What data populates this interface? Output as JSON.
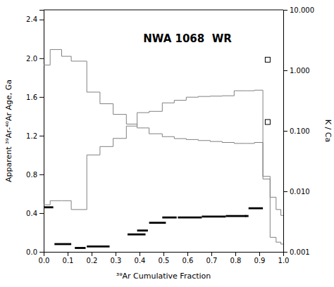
{
  "chart_data": {
    "type": "step",
    "title": "NWA 1068  WR",
    "x_label": "³⁹Ar Cumulative Fraction",
    "y_label": "Apparent ³⁹Ar-⁴⁰Ar Age, Ga",
    "y2_label": "K / Ca",
    "xlim": [
      0.0,
      1.0
    ],
    "ylim": [
      0.0,
      2.5
    ],
    "y2lim": [
      0.001,
      10.0
    ],
    "xticks": [
      {
        "value": 0.0,
        "label": "0.0"
      },
      0.1,
      0.2,
      0.3,
      0.4,
      0.5,
      0.6,
      0.7,
      0.8,
      0.9,
      {
        "value": 1.0,
        "label": "1.0"
      }
    ],
    "yticks": [
      {
        "value": 0.0,
        "label": "0.0"
      },
      0.4,
      0.8,
      1.2,
      1.6,
      {
        "value": 2.0,
        "label": "2.0"
      },
      2.4
    ],
    "y2ticks": [
      0.001,
      {
        "value": 0.01,
        "label": "0.010"
      },
      {
        "value": 0.1,
        "label": "0.100"
      },
      {
        "value": 1.0,
        "label": "1.000"
      },
      {
        "value": 10.0,
        "label": "10.000"
      }
    ],
    "log": "y2",
    "grid": false,
    "series": [
      {
        "type": "step",
        "color": "#808080",
        "x_start": [
          0.0,
          0.027,
          0.075,
          0.115,
          0.18,
          0.235,
          0.29,
          0.345,
          0.39,
          0.44,
          0.495,
          0.545,
          0.595,
          0.645,
          0.695,
          0.745,
          0.795,
          0.845,
          0.88,
          0.915,
          0.945,
          0.97,
          0.99
        ],
        "x_end": [
          0.027,
          0.075,
          0.115,
          0.18,
          0.235,
          0.29,
          0.345,
          0.39,
          0.44,
          0.495,
          0.545,
          0.595,
          0.645,
          0.695,
          0.745,
          0.795,
          0.845,
          0.88,
          0.915,
          0.945,
          0.97,
          0.99,
          1.0
        ],
        "values": [
          1.93,
          2.09,
          2.02,
          1.97,
          1.65,
          1.53,
          1.42,
          1.32,
          1.28,
          1.22,
          1.19,
          1.17,
          1.16,
          1.15,
          1.14,
          1.13,
          1.12,
          1.12,
          1.13,
          0.78,
          0.15,
          0.1,
          0.08
        ]
      },
      {
        "type": "segment",
        "color": "#000000",
        "x_start": [
          0.0,
          0.045,
          0.13,
          0.18,
          0.35,
          0.39,
          0.44,
          0.495,
          0.56,
          0.66,
          0.76,
          0.84,
          0.855
        ],
        "x_end": [
          0.04,
          0.115,
          0.175,
          0.275,
          0.425,
          0.435,
          0.51,
          0.555,
          0.66,
          0.76,
          0.845,
          0.855,
          0.915
        ],
        "values": [
          0.46,
          0.08,
          0.04,
          0.055,
          0.18,
          0.22,
          0.3,
          0.355,
          0.355,
          0.365,
          0.37,
          0.37,
          0.45
        ]
      },
      {
        "type": "step",
        "color": "#808080",
        "axis": "y2",
        "x_start": [
          0.0,
          0.027,
          0.075,
          0.115,
          0.18,
          0.235,
          0.29,
          0.345,
          0.39,
          0.44,
          0.495,
          0.545,
          0.595,
          0.645,
          0.695,
          0.745,
          0.795,
          0.845,
          0.88,
          0.915,
          0.945,
          0.97,
          0.99
        ],
        "x_end": [
          0.027,
          0.075,
          0.115,
          0.18,
          0.235,
          0.29,
          0.345,
          0.39,
          0.44,
          0.495,
          0.545,
          0.595,
          0.645,
          0.695,
          0.745,
          0.795,
          0.845,
          0.88,
          0.915,
          0.945,
          0.97,
          0.99,
          1.0
        ],
        "values": [
          0.006,
          0.007,
          0.007,
          0.005,
          0.04,
          0.055,
          0.075,
          0.12,
          0.2,
          0.21,
          0.29,
          0.32,
          0.36,
          0.37,
          0.375,
          0.38,
          0.46,
          0.46,
          0.47,
          0.016,
          0.008,
          0.005,
          0.004
        ]
      },
      {
        "type": "scatter",
        "color": "#000000",
        "axis": "y2",
        "marker": "square",
        "x": [
          0.935,
          0.935
        ],
        "values": [
          1.5,
          0.14
        ]
      }
    ]
  }
}
